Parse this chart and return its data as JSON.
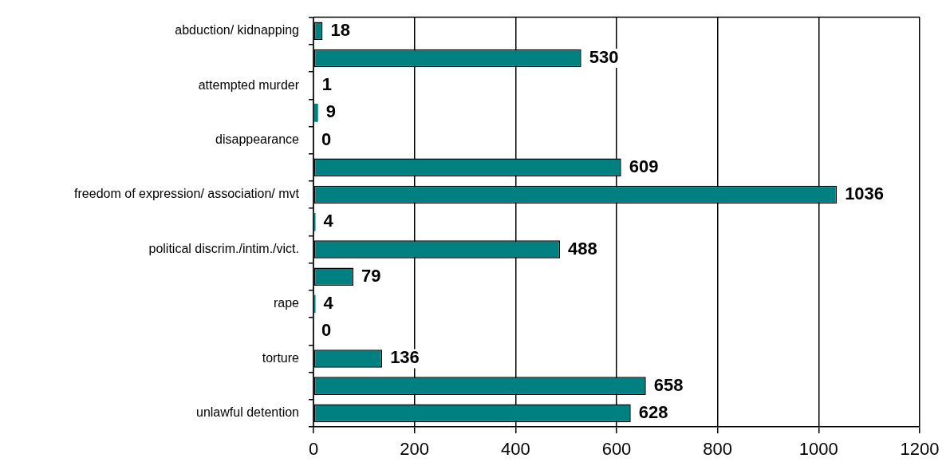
{
  "chart_data": {
    "type": "bar",
    "orientation": "horizontal",
    "categories": [
      "abduction/ kidnapping",
      null,
      "attempted murder",
      null,
      "disappearance",
      null,
      "freedom of expression/ association/ mvt",
      null,
      "political discrim./intim./vict.",
      null,
      "rape",
      null,
      "torture",
      null,
      "unlawful detention"
    ],
    "values": [
      18,
      530,
      1,
      9,
      0,
      609,
      1036,
      4,
      488,
      79,
      4,
      0,
      136,
      658,
      628
    ],
    "color": "#008080",
    "xlim": [
      0,
      1200
    ],
    "xticks": [
      0,
      200,
      400,
      600,
      800,
      1000,
      1200
    ],
    "grid": "x",
    "data_labels": true
  }
}
